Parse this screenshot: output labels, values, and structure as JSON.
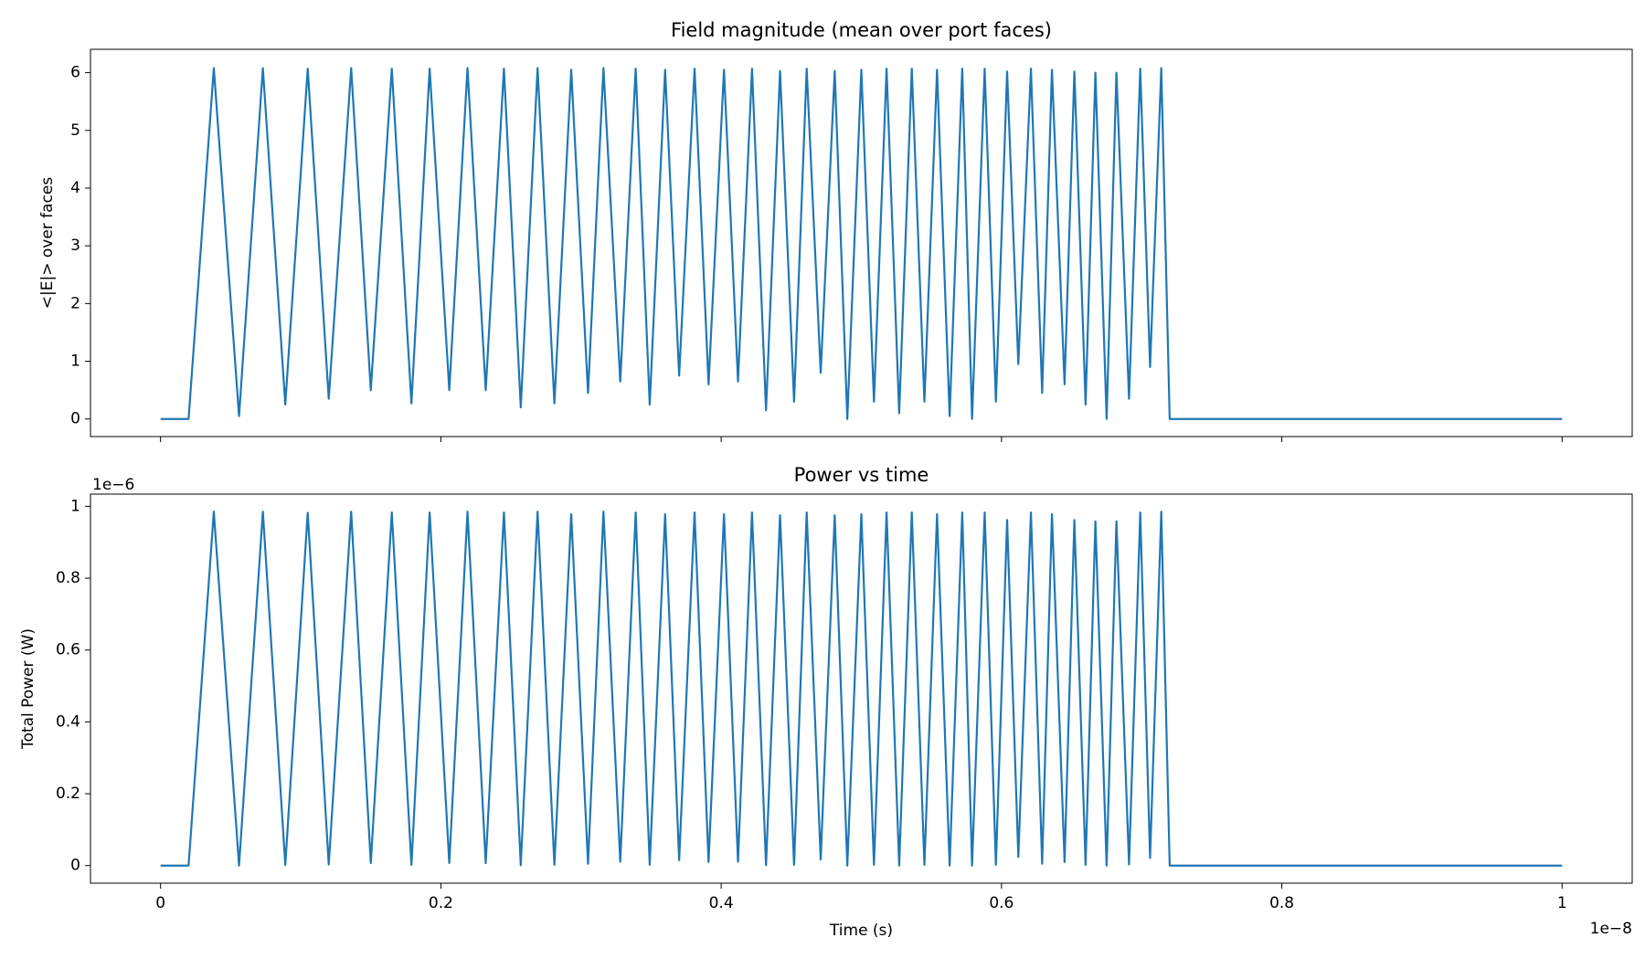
{
  "chart_data": [
    {
      "type": "line",
      "title": "Field magnitude (mean over port faces)",
      "y_label": "<|E|> over faces",
      "x": [
        0,
        0.02,
        0.038,
        0.056,
        0.073,
        0.089,
        0.105,
        0.12,
        0.136,
        0.15,
        0.165,
        0.179,
        0.192,
        0.206,
        0.219,
        0.232,
        0.245,
        0.257,
        0.269,
        0.281,
        0.293,
        0.305,
        0.316,
        0.328,
        0.339,
        0.349,
        0.36,
        0.37,
        0.381,
        0.391,
        0.402,
        0.412,
        0.422,
        0.432,
        0.442,
        0.452,
        0.461,
        0.471,
        0.481,
        0.49,
        0.5,
        0.509,
        0.518,
        0.527,
        0.536,
        0.545,
        0.554,
        0.563,
        0.572,
        0.579,
        0.588,
        0.596,
        0.604,
        0.612,
        0.621,
        0.629,
        0.636,
        0.645,
        0.652,
        0.66,
        0.667,
        0.675,
        0.682,
        0.691,
        0.699,
        0.706,
        0.714,
        0.72,
        1.0
      ],
      "series": [
        {
          "name": "<|E|>",
          "color": "#1f77b4",
          "values": [
            0,
            0,
            6.08,
            0.05,
            6.08,
            0.25,
            6.07,
            0.35,
            6.08,
            0.5,
            6.07,
            0.27,
            6.07,
            0.5,
            6.08,
            0.5,
            6.07,
            0.2,
            6.08,
            0.27,
            6.05,
            0.45,
            6.08,
            0.65,
            6.07,
            0.25,
            6.05,
            0.75,
            6.07,
            0.6,
            6.05,
            0.65,
            6.07,
            0.15,
            6.03,
            0.3,
            6.07,
            0.8,
            6.03,
            0.0,
            6.05,
            0.3,
            6.07,
            0.1,
            6.07,
            0.3,
            6.05,
            0.05,
            6.07,
            0.0,
            6.07,
            0.3,
            6.02,
            0.95,
            6.07,
            0.45,
            6.05,
            0.6,
            6.02,
            0.25,
            6.0,
            0.0,
            6.0,
            0.35,
            6.07,
            0.9,
            6.08,
            0,
            0
          ]
        }
      ],
      "xlim": [
        -0.05,
        1.05
      ],
      "xticks": [
        0.0,
        0.2,
        0.4,
        0.6,
        0.8,
        1.0
      ],
      "ylim": [
        -0.305,
        6.405
      ],
      "yticks": [
        0,
        1,
        2,
        3,
        4,
        5,
        6
      ]
    },
    {
      "type": "line",
      "title": "Power vs time",
      "y_label": "Total Power (W)",
      "x_label": "Time (s)",
      "y_offset_label": "1e−6",
      "x_offset_label": "1e−8",
      "x": [
        0,
        0.02,
        0.038,
        0.056,
        0.073,
        0.089,
        0.105,
        0.12,
        0.136,
        0.15,
        0.165,
        0.179,
        0.192,
        0.206,
        0.219,
        0.232,
        0.245,
        0.257,
        0.269,
        0.281,
        0.293,
        0.305,
        0.316,
        0.328,
        0.339,
        0.349,
        0.36,
        0.37,
        0.381,
        0.391,
        0.402,
        0.412,
        0.422,
        0.432,
        0.442,
        0.452,
        0.461,
        0.471,
        0.481,
        0.49,
        0.5,
        0.509,
        0.518,
        0.527,
        0.536,
        0.545,
        0.554,
        0.563,
        0.572,
        0.579,
        0.588,
        0.596,
        0.604,
        0.612,
        0.621,
        0.629,
        0.636,
        0.645,
        0.652,
        0.66,
        0.667,
        0.675,
        0.682,
        0.691,
        0.699,
        0.706,
        0.714,
        0.72,
        1.0
      ],
      "series": [
        {
          "name": "Total Power",
          "color": "#1f77b4",
          "values": [
            0,
            0,
            0.985,
            0.0,
            0.985,
            0.002,
            0.982,
            0.003,
            0.985,
            0.007,
            0.983,
            0.002,
            0.983,
            0.007,
            0.985,
            0.007,
            0.983,
            0.001,
            0.985,
            0.002,
            0.978,
            0.005,
            0.985,
            0.011,
            0.983,
            0.002,
            0.978,
            0.015,
            0.983,
            0.01,
            0.978,
            0.011,
            0.983,
            0.001,
            0.975,
            0.002,
            0.983,
            0.017,
            0.975,
            0.0,
            0.978,
            0.002,
            0.983,
            0.0,
            0.983,
            0.002,
            0.978,
            0.0,
            0.983,
            0.0,
            0.983,
            0.002,
            0.962,
            0.024,
            0.983,
            0.005,
            0.978,
            0.01,
            0.962,
            0.002,
            0.958,
            0.0,
            0.958,
            0.003,
            0.983,
            0.021,
            0.985,
            0,
            0
          ]
        }
      ],
      "xlim": [
        -0.05,
        1.05
      ],
      "xticks": [
        0.0,
        0.2,
        0.4,
        0.6,
        0.8,
        1.0
      ],
      "ylim": [
        -0.049,
        1.034
      ],
      "yticks": [
        0.0,
        0.2,
        0.4,
        0.6,
        0.8,
        1.0
      ]
    }
  ]
}
